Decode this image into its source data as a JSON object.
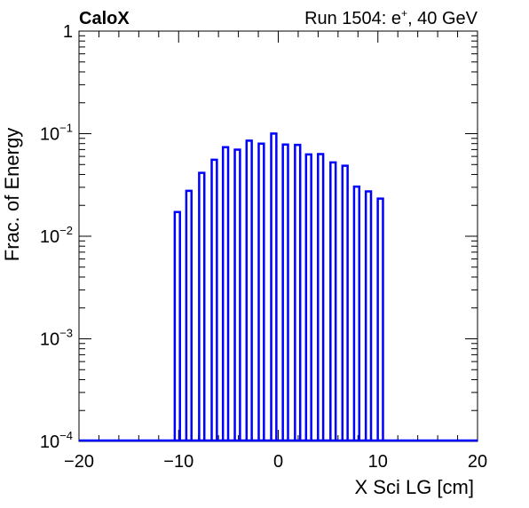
{
  "chart_data": {
    "type": "bar",
    "title_left": "CaloX",
    "title_right_prefix": "Run 1504: e",
    "title_right_sup": "+",
    "title_right_suffix": ", 40 GeV",
    "xlabel": "X Sci LG [cm]",
    "ylabel": "Frac. of Energy",
    "xlim": [
      -20,
      20
    ],
    "ylim": [
      0.0001,
      1
    ],
    "yscale": "log",
    "x_ticks": [
      "−20",
      "−10",
      "0",
      "10",
      "20"
    ],
    "y_ticks": [
      {
        "base": "10",
        "exp": "−4"
      },
      {
        "base": "10",
        "exp": "−3"
      },
      {
        "base": "10",
        "exp": "−2"
      },
      {
        "base": "10",
        "exp": "−1"
      },
      {
        "base": "1",
        "exp": ""
      }
    ],
    "series_color": "#0000ff",
    "bins": [
      {
        "x": -10.13,
        "y": 0.0172
      },
      {
        "x": -8.97,
        "y": 0.0277
      },
      {
        "x": -7.68,
        "y": 0.0415
      },
      {
        "x": -6.42,
        "y": 0.0557
      },
      {
        "x": -5.29,
        "y": 0.0738
      },
      {
        "x": -4.1,
        "y": 0.0699
      },
      {
        "x": -2.92,
        "y": 0.0855
      },
      {
        "x": -1.7,
        "y": 0.08
      },
      {
        "x": -0.45,
        "y": 0.1002
      },
      {
        "x": 0.72,
        "y": 0.0784
      },
      {
        "x": 1.94,
        "y": 0.0778
      },
      {
        "x": 3.05,
        "y": 0.0627
      },
      {
        "x": 4.25,
        "y": 0.0632
      },
      {
        "x": 5.5,
        "y": 0.0525
      },
      {
        "x": 6.7,
        "y": 0.0487
      },
      {
        "x": 7.87,
        "y": 0.0305
      },
      {
        "x": 9.05,
        "y": 0.0274
      },
      {
        "x": 10.25,
        "y": 0.0233
      }
    ]
  }
}
